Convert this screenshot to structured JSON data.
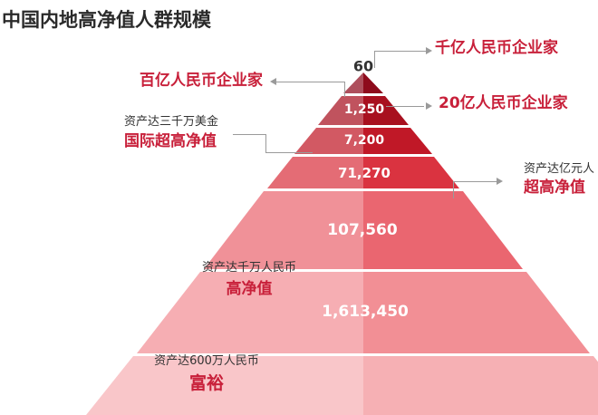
{
  "title": "中国内地高净值人群规模",
  "chart_data": {
    "type": "pyramid",
    "title": "中国内地高净值人群规模",
    "levels": [
      {
        "value": "60",
        "color": "#8e0b1c"
      },
      {
        "value": "1,250",
        "color": "#a8101f"
      },
      {
        "value": "7,200",
        "color": "#c01827"
      },
      {
        "value": "71,270",
        "color": "#da3340"
      },
      {
        "value": "107,560",
        "color": "#ea6670"
      },
      {
        "value": "1,613,450",
        "color": "#f28f95"
      },
      {
        "value": "",
        "color": "#f6b0b4"
      }
    ],
    "callouts": {
      "qianyi": {
        "main": "千亿人民币企业家"
      },
      "baiyi": {
        "main": "百亿人民币企业家"
      },
      "ershiyi": {
        "main": "20亿人民币企业家"
      },
      "guoji": {
        "sub": "资产达三千万美金",
        "main": "国际超高净值"
      },
      "chaogao": {
        "sub": "资产达亿元人",
        "main": "超高净值"
      },
      "gaojing": {
        "sub": "资产达千万人民币",
        "main": "高净值"
      },
      "fuyu": {
        "sub": "资产达600万人民币",
        "main": "富裕"
      }
    }
  }
}
